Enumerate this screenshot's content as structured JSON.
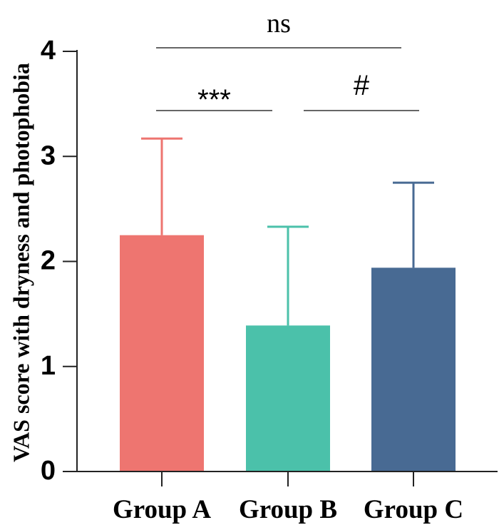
{
  "chart_data": {
    "type": "bar",
    "categories": [
      "Group A",
      "Group B",
      "Group C"
    ],
    "values": [
      2.25,
      1.39,
      1.94
    ],
    "errors": [
      0.92,
      0.94,
      0.81
    ],
    "colors": [
      "#ee7570",
      "#4bc1aa",
      "#486a93"
    ],
    "ylabel": "VAS score with dryness and photophobia",
    "xlabel": "",
    "title": "",
    "ylim": [
      0,
      4
    ],
    "yticks": [
      "0",
      "1",
      "2",
      "3",
      "4"
    ],
    "grid": false,
    "significance": [
      {
        "from": 0,
        "to": 2,
        "label": "ns",
        "level": 1
      },
      {
        "from": 0,
        "to": 1,
        "label": "***",
        "level": 0
      },
      {
        "from": 1,
        "to": 2,
        "label": "#",
        "level": 0
      }
    ]
  }
}
